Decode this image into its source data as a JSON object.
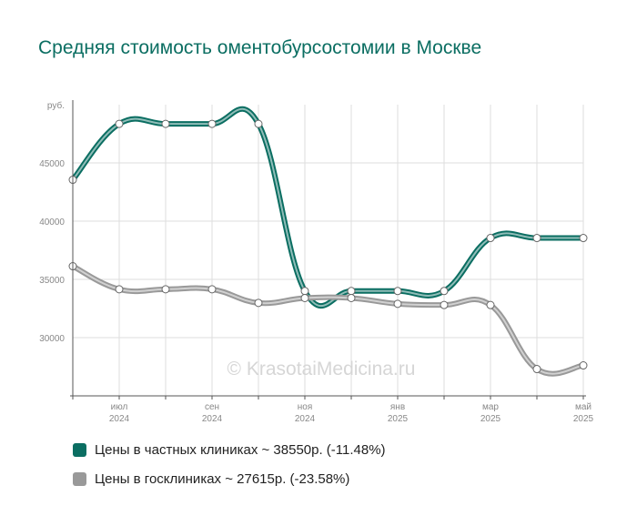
{
  "title": "Средняя стоимость оментобурсостомии в Москве",
  "watermark": "© KrasotaiMedicina.ru",
  "chart_data": {
    "type": "line",
    "y_unit": "руб.",
    "ylim": [
      25000,
      50000
    ],
    "y_ticks": [
      30000,
      35000,
      40000,
      45000
    ],
    "y_tick_labels": [
      "30000",
      "35000",
      "40000",
      "45000"
    ],
    "x_tick_labels": [
      {
        "index": 1,
        "month": "июл",
        "year": "2024"
      },
      {
        "index": 3,
        "month": "сен",
        "year": "2024"
      },
      {
        "index": 5,
        "month": "ноя",
        "year": "2024"
      },
      {
        "index": 7,
        "month": "янв",
        "year": "2025"
      },
      {
        "index": 9,
        "month": "мар",
        "year": "2025"
      },
      {
        "index": 11,
        "month": "май",
        "year": "2025"
      }
    ],
    "grid": true,
    "series": [
      {
        "name": "Цены в частных клиниках",
        "color": "#0b6e62",
        "values": [
          43550,
          48350,
          48350,
          48350,
          48350,
          34000,
          34000,
          34000,
          34000,
          38550,
          38550,
          38550
        ]
      },
      {
        "name": "Цены в госклиниках",
        "color": "#999999",
        "values": [
          36130,
          34150,
          34150,
          34150,
          32980,
          33400,
          33400,
          32900,
          32800,
          32800,
          27300,
          27615
        ]
      }
    ],
    "legend_position": "bottom-left"
  },
  "legend": [
    {
      "label": "Цены в частных клиниках ~ 38550р. (-11.48%)",
      "color": "#0b6e62"
    },
    {
      "label": "Цены в госклиниках ~ 27615р. (-23.58%)",
      "color": "#999999"
    }
  ]
}
